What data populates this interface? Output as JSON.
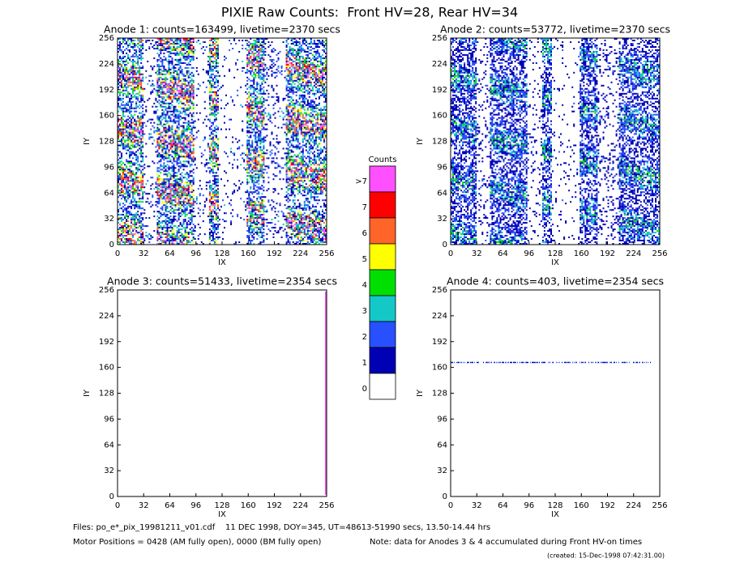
{
  "title": "PIXIE Raw Counts:  Front HV=28, Rear HV=34",
  "chart_data": [
    {
      "type": "heatmap",
      "title": "Anode 1: counts=163499, livetime=2370 secs",
      "xlabel": "IX",
      "ylabel": "IY",
      "xlim": [
        0,
        256
      ],
      "ylim": [
        0,
        256
      ],
      "xticks": [
        0,
        32,
        64,
        96,
        128,
        160,
        192,
        224,
        256
      ],
      "yticks": [
        0,
        32,
        64,
        96,
        128,
        160,
        192,
        224,
        256
      ]
    },
    {
      "type": "heatmap",
      "title": "Anode 2: counts=53772, livetime=2370 secs",
      "xlabel": "IX",
      "ylabel": "IY",
      "xlim": [
        0,
        256
      ],
      "ylim": [
        0,
        256
      ],
      "xticks": [
        0,
        32,
        64,
        96,
        128,
        160,
        192,
        224,
        256
      ],
      "yticks": [
        0,
        32,
        64,
        96,
        128,
        160,
        192,
        224,
        256
      ]
    },
    {
      "type": "heatmap",
      "title": "Anode 3: counts=51433, livetime=2354 secs",
      "xlabel": "IX",
      "ylabel": "IY",
      "xlim": [
        0,
        256
      ],
      "ylim": [
        0,
        256
      ],
      "xticks": [
        0,
        32,
        64,
        96,
        128,
        160,
        192,
        224,
        256
      ],
      "yticks": [
        0,
        32,
        64,
        96,
        128,
        160,
        192,
        224,
        256
      ]
    },
    {
      "type": "heatmap",
      "title": "Anode 4: counts=403, livetime=2354 secs",
      "xlabel": "IX",
      "ylabel": "IY",
      "xlim": [
        0,
        256
      ],
      "ylim": [
        0,
        256
      ],
      "xticks": [
        0,
        32,
        64,
        96,
        128,
        160,
        192,
        224,
        256
      ],
      "yticks": [
        0,
        32,
        64,
        96,
        128,
        160,
        192,
        224,
        256
      ]
    }
  ],
  "colorbar": {
    "title": "Counts",
    "labels": [
      ">7",
      "7",
      "6",
      "5",
      "4",
      "3",
      "2",
      "1",
      "0"
    ],
    "colors": [
      "#ff50ff",
      "#ff0000",
      "#ff6428",
      "#ffff00",
      "#00e000",
      "#14c8c8",
      "#2850ff",
      "#0000b4",
      "#ffffff"
    ]
  },
  "footer": {
    "files": "Files: po_e*_pix_19981211_v01.cdf    11 DEC 1998, DOY=345, UT=48613-51990 secs, 13.50-14.44 hrs",
    "motor": "Motor Positions = 0428 (AM fully open), 0000 (BM fully open)",
    "note": "Note: data for Anodes 3 & 4 accumulated during Front HV-on times",
    "created": "(created: 15-Dec-1998 07:42:31.00)"
  }
}
